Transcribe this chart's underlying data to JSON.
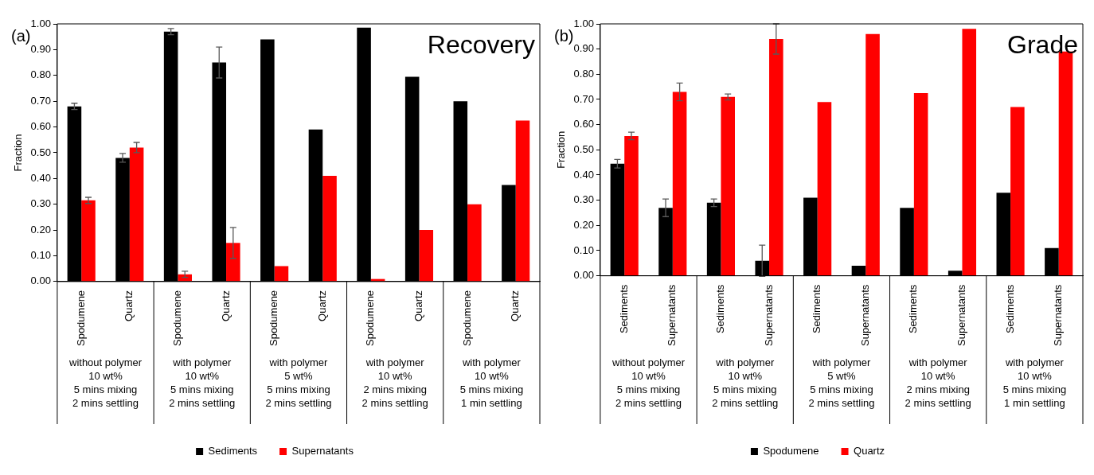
{
  "chart_data": [
    {
      "type": "bar",
      "title": "Recovery",
      "subtitle": "(a)",
      "ylabel": "Fraction",
      "categories": [
        "Spodumene",
        "Quartz",
        "Spodumene",
        "Quartz",
        "Spodumene",
        "Quartz",
        "Spodumene",
        "Quartz",
        "Spodumene",
        "Quartz"
      ],
      "series": [
        {
          "name": "Sediments",
          "color": "#000000",
          "values": [
            0.68,
            0.48,
            0.97,
            0.85,
            0.94,
            0.59,
            0.985,
            0.795,
            0.7,
            0.375
          ],
          "errors": [
            0.012,
            0.017,
            0.012,
            0.06,
            null,
            null,
            null,
            null,
            null,
            null
          ]
        },
        {
          "name": "Supernatants",
          "color": "#ff0000",
          "values": [
            0.315,
            0.52,
            0.028,
            0.15,
            0.06,
            0.41,
            0.01,
            0.2,
            0.3,
            0.625
          ],
          "errors": [
            0.012,
            0.02,
            0.012,
            0.06,
            null,
            null,
            null,
            null,
            null,
            null
          ]
        }
      ],
      "annotations": [
        "without polymer\n10 wt%\n5 mins mixing\n2 mins settling",
        "with polymer\n10 wt%\n5 mins mixing\n2 mins settling",
        "with polymer\n5 wt%\n5 mins mixing\n2 mins settling",
        "with polymer\n10 wt%\n2 mins mixing\n2 mins settling",
        "with polymer\n10 wt%\n5 mins mixing\n1 min settling"
      ],
      "ylim": [
        0,
        1
      ],
      "yticks": [
        {
          "value": 0,
          "label": "0.00"
        },
        {
          "value": 0.1,
          "label": "0.10"
        },
        {
          "value": 0.2,
          "label": "0.20"
        },
        {
          "value": 0.3,
          "label": "0.30"
        },
        {
          "value": 0.4,
          "label": "0.40"
        },
        {
          "value": 0.5,
          "label": "0.50"
        },
        {
          "value": 0.6,
          "label": "0.60"
        },
        {
          "value": 0.7,
          "label": "0.70"
        },
        {
          "value": 0.8,
          "label": "0.80"
        },
        {
          "value": 0.9,
          "label": "0.90"
        },
        {
          "value": 1,
          "label": "1.00"
        }
      ],
      "legend": "bottom"
    },
    {
      "type": "bar",
      "title": "Grade",
      "subtitle": "(b)",
      "ylabel": "Fraction",
      "categories": [
        "Sediments",
        "Supernatants",
        "Sediments",
        "Supernatants",
        "Sediments",
        "Supernatants",
        "Sediments",
        "Supernatants",
        "Sediments",
        "Supernatants"
      ],
      "series": [
        {
          "name": "Spodumene",
          "color": "#000000",
          "values": [
            0.445,
            0.27,
            0.29,
            0.06,
            0.31,
            0.04,
            0.27,
            0.02,
            0.33,
            0.11
          ],
          "errors": [
            0.017,
            0.035,
            0.015,
            0.062,
            null,
            null,
            null,
            null,
            null,
            null
          ]
        },
        {
          "name": "Quartz",
          "color": "#ff0000",
          "values": [
            0.555,
            0.73,
            0.71,
            0.94,
            0.69,
            0.96,
            0.725,
            0.98,
            0.67,
            0.89
          ],
          "errors": [
            0.015,
            0.035,
            0.012,
            0.06,
            null,
            null,
            null,
            null,
            null,
            null
          ]
        }
      ],
      "annotations": [
        "without polymer\n10 wt%\n5 mins mixing\n2 mins settling",
        "with polymer\n10 wt%\n5 mins mixing\n2 mins settling",
        "with polymer\n5 wt%\n5 mins mixing\n2 mins settling",
        "with polymer\n10 wt%\n2 mins mixing\n2 mins settling",
        "with polymer\n10 wt%\n5 mins mixing\n1 min settling"
      ],
      "ylim": [
        0,
        1
      ],
      "yticks": [
        {
          "value": 0,
          "label": "0.00"
        },
        {
          "value": 0.1,
          "label": "0.10"
        },
        {
          "value": 0.2,
          "label": "0.20"
        },
        {
          "value": 0.3,
          "label": "0.30"
        },
        {
          "value": 0.4,
          "label": "0.40"
        },
        {
          "value": 0.5,
          "label": "0.50"
        },
        {
          "value": 0.6,
          "label": "0.60"
        },
        {
          "value": 0.7,
          "label": "0.70"
        },
        {
          "value": 0.8,
          "label": "0.80"
        },
        {
          "value": 0.9,
          "label": "0.90"
        },
        {
          "value": 1,
          "label": "1.00"
        }
      ],
      "legend": "bottom"
    }
  ]
}
